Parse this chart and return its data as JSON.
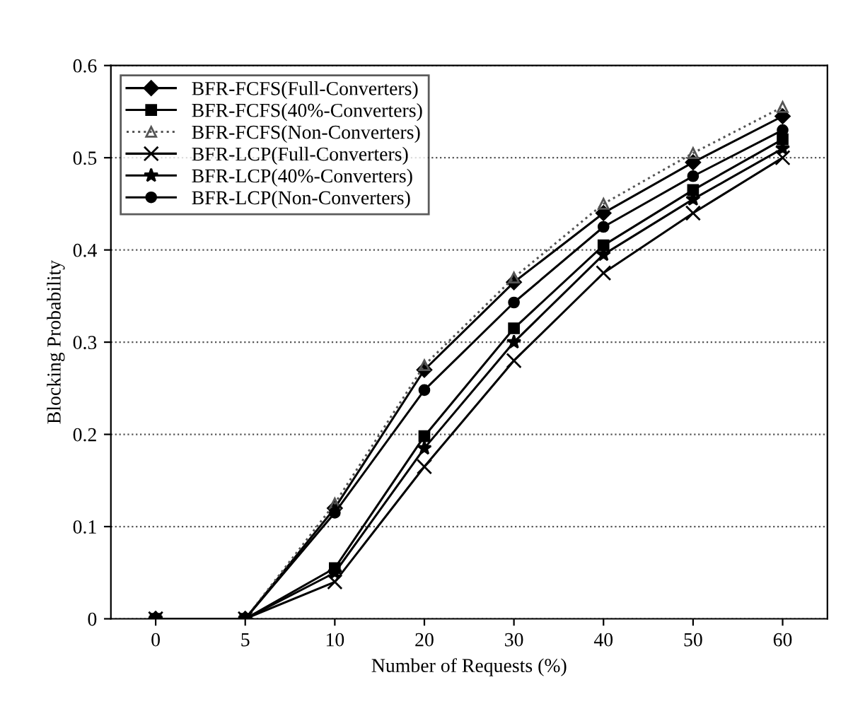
{
  "chart_data": {
    "type": "line",
    "xlabel": "Number of Requests (%)",
    "ylabel": "Blocking Probability",
    "categories": [
      "0",
      "5",
      "10",
      "20",
      "30",
      "40",
      "50",
      "60"
    ],
    "ylim": [
      0,
      0.6
    ],
    "yticks": [
      0,
      0.1,
      0.2,
      0.3,
      0.4,
      0.5,
      0.6
    ],
    "grid": "y",
    "legend": "top left",
    "series": [
      {
        "name": "BFR-FCFS(Full-Converters)",
        "color": "#000000",
        "marker": "diamond",
        "line_style": "solid",
        "values": [
          0,
          0,
          0.12,
          0.27,
          0.365,
          0.44,
          0.495,
          0.545
        ]
      },
      {
        "name": "BFR-FCFS(40%-Converters)",
        "color": "#000000",
        "marker": "square",
        "line_style": "solid",
        "values": [
          0,
          0,
          0.055,
          0.198,
          0.315,
          0.405,
          0.465,
          0.52
        ]
      },
      {
        "name": "BFR-FCFS(Non-Converters)",
        "color": "#555555",
        "marker": "triangle",
        "line_style": "dotted",
        "values": [
          0,
          0,
          0.125,
          0.275,
          0.37,
          0.45,
          0.505,
          0.555
        ]
      },
      {
        "name": "BFR-LCP(Full-Converters)",
        "color": "#000000",
        "marker": "cross",
        "line_style": "solid",
        "values": [
          0,
          0,
          0.04,
          0.165,
          0.28,
          0.375,
          0.44,
          0.5
        ]
      },
      {
        "name": "BFR-LCP(40%-Converters)",
        "color": "#000000",
        "marker": "star",
        "line_style": "solid",
        "values": [
          0,
          0,
          0.05,
          0.185,
          0.3,
          0.395,
          0.455,
          0.51
        ]
      },
      {
        "name": "BFR-LCP(Non-Converters)",
        "color": "#000000",
        "marker": "circle",
        "line_style": "solid",
        "values": [
          0,
          0,
          0.115,
          0.248,
          0.343,
          0.425,
          0.48,
          0.53
        ]
      }
    ]
  }
}
